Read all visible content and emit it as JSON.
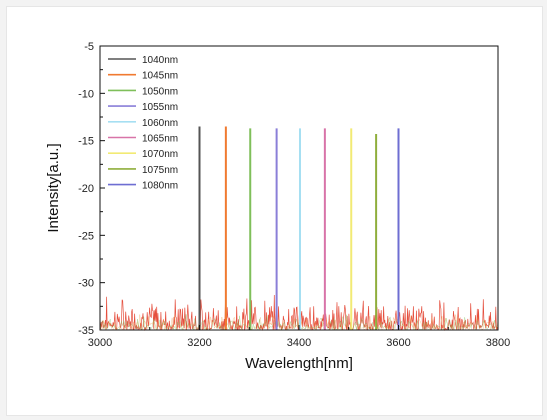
{
  "chart_data": {
    "type": "line",
    "title": "",
    "xlabel": "Wavelength[nm]",
    "ylabel": "Intensity[a.u.]",
    "xlim": [
      3000,
      3800
    ],
    "ylim": [
      -35,
      -5
    ],
    "xticks": [
      3000,
      3200,
      3400,
      3600,
      3800
    ],
    "yticks": [
      -35,
      -30,
      -25,
      -20,
      -15,
      -10,
      -5
    ],
    "legend_position": "top-left",
    "grid": false,
    "series": [
      {
        "name": "1040nm",
        "color": "#555555",
        "peak_x": 3200,
        "peak_y": -13.5
      },
      {
        "name": "1045nm",
        "color": "#f07a30",
        "peak_x": 3253,
        "peak_y": -13.5
      },
      {
        "name": "1050nm",
        "color": "#7fbf5a",
        "peak_x": 3302,
        "peak_y": -13.7
      },
      {
        "name": "1055nm",
        "color": "#8a7fd8",
        "peak_x": 3355,
        "peak_y": -13.7
      },
      {
        "name": "1060nm",
        "color": "#a6dff2",
        "peak_x": 3402,
        "peak_y": -13.7
      },
      {
        "name": "1065nm",
        "color": "#d874a8",
        "peak_x": 3452,
        "peak_y": -13.7
      },
      {
        "name": "1070nm",
        "color": "#f2ea74",
        "peak_x": 3505,
        "peak_y": -13.7
      },
      {
        "name": "1075nm",
        "color": "#8fae3c",
        "peak_x": 3555,
        "peak_y": -14.3
      },
      {
        "name": "1080nm",
        "color": "#6e6ed2",
        "peak_x": 3600,
        "peak_y": -13.7
      }
    ],
    "noise": {
      "color": "#e0301c",
      "baseline": -35,
      "max_height": 3.5
    }
  }
}
